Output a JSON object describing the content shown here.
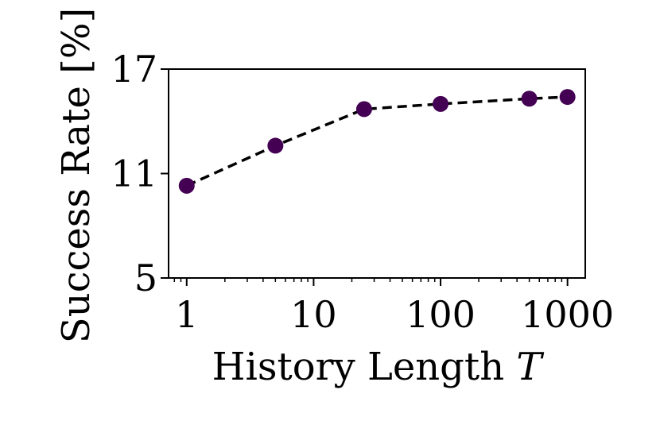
{
  "chart_data": {
    "type": "line",
    "x_scale": "log",
    "x": [
      1,
      5,
      25,
      100,
      500,
      1000
    ],
    "series": [
      {
        "values": [
          10.3,
          12.6,
          14.7,
          15.0,
          15.3,
          15.4
        ],
        "color": "#440154",
        "line_style": "dashed",
        "line_color": "#000000",
        "marker": "circle"
      }
    ],
    "xlabel_text": "History Length ",
    "xlabel_var": "T",
    "ylabel": "Success Rate [%]",
    "xlim": [
      0.72,
      1380
    ],
    "ylim": [
      5,
      17
    ],
    "x_ticks": [
      1,
      10,
      100,
      1000
    ],
    "x_tick_labels": [
      "1",
      "10",
      "100",
      "1000"
    ],
    "y_ticks": [
      5,
      11,
      17
    ],
    "y_tick_labels": [
      "5",
      "11",
      "17"
    ],
    "grid": false,
    "legend": "none"
  }
}
